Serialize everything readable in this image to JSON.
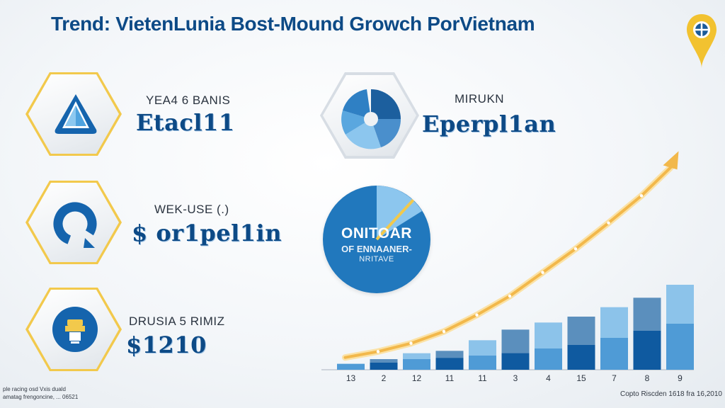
{
  "title": "Trend: VietenLunia Bost-Mound Growch PorVietnam",
  "kpis": [
    {
      "label": "YEA4 6 BANIS",
      "value": "Etacl11",
      "icon": "triangle-logo-icon"
    },
    {
      "label": "WEK-USE (.)",
      "value": "$ or1pel1in",
      "icon": "ring-progress-icon"
    },
    {
      "label": "DRUSIA 5 RIMIZ",
      "value": "$1210",
      "icon": "device-icon"
    }
  ],
  "feature": {
    "label": "MIRUKN",
    "value": "Eperpl1an",
    "icon": "pie-segments-icon"
  },
  "badge": {
    "title": "ONITOAR",
    "subtitle": "OF ENNAANER-",
    "subtitle2": "NRITAVE"
  },
  "footer": {
    "left_line1": "ple racing osd Vxis duald",
    "left_line2": "amatag frengoncine, ... 06521",
    "right": "Copto Riscden 1618 fra 16,2010"
  },
  "colors": {
    "title": "#0d4a86",
    "accent": "#f2c94c",
    "bar_dark": "#0f5aa0",
    "bar_light": "#8cc3ea",
    "trend_arrow": "#f2b84b"
  },
  "chart_data": {
    "type": "bar",
    "categories": [
      "13",
      "2",
      "12",
      "11",
      "11",
      "3",
      "4",
      "15",
      "7",
      "8",
      "9"
    ],
    "series": [
      {
        "values": [
          5,
          9,
          14,
          16,
          25,
          34,
          40,
          45,
          53,
          61,
          72
        ]
      },
      {
        "values": [
          5,
          6,
          9,
          10,
          12,
          14,
          18,
          21,
          27,
          33,
          39
        ]
      }
    ],
    "trend": [
      8,
      13,
      20,
      30,
      44,
      60,
      80,
      100,
      122,
      145,
      172
    ],
    "ylim": [
      0,
      180
    ]
  }
}
